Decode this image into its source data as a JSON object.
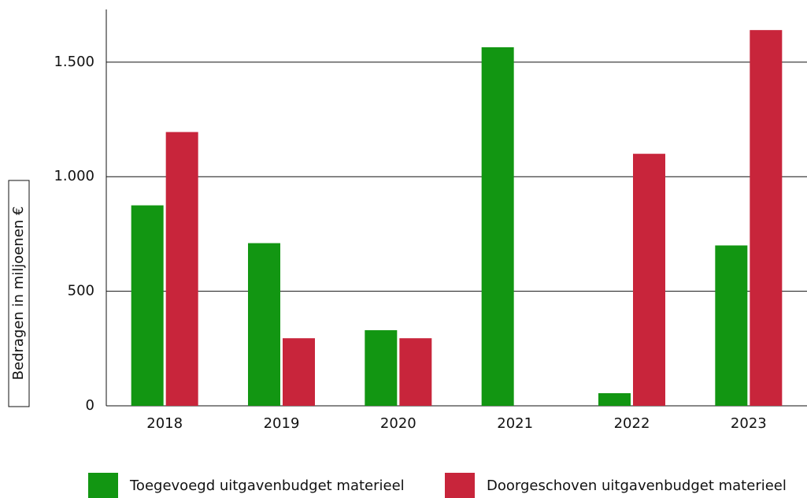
{
  "chart_data": {
    "type": "bar",
    "y_label": "Bedragen in  miljoenen  €",
    "categories": [
      "2018",
      "2019",
      "2020",
      "2021",
      "2022",
      "2023"
    ],
    "series": [
      {
        "name": "Toegevoegd uitgavenbudget materieel",
        "color": "#129612",
        "values": [
          875,
          710,
          330,
          1565,
          55,
          700
        ]
      },
      {
        "name": "Doorgeschoven uitgavenbudget materieel",
        "color": "#c8253b",
        "values": [
          1195,
          295,
          295,
          0,
          1100,
          1640
        ]
      }
    ],
    "ylim": [
      0,
      1730
    ],
    "yticks": [
      0,
      500,
      {
        "value": 1000,
        "label": "1.000"
      },
      {
        "value": 1500,
        "label": "1.500"
      }
    ],
    "grid": true
  }
}
